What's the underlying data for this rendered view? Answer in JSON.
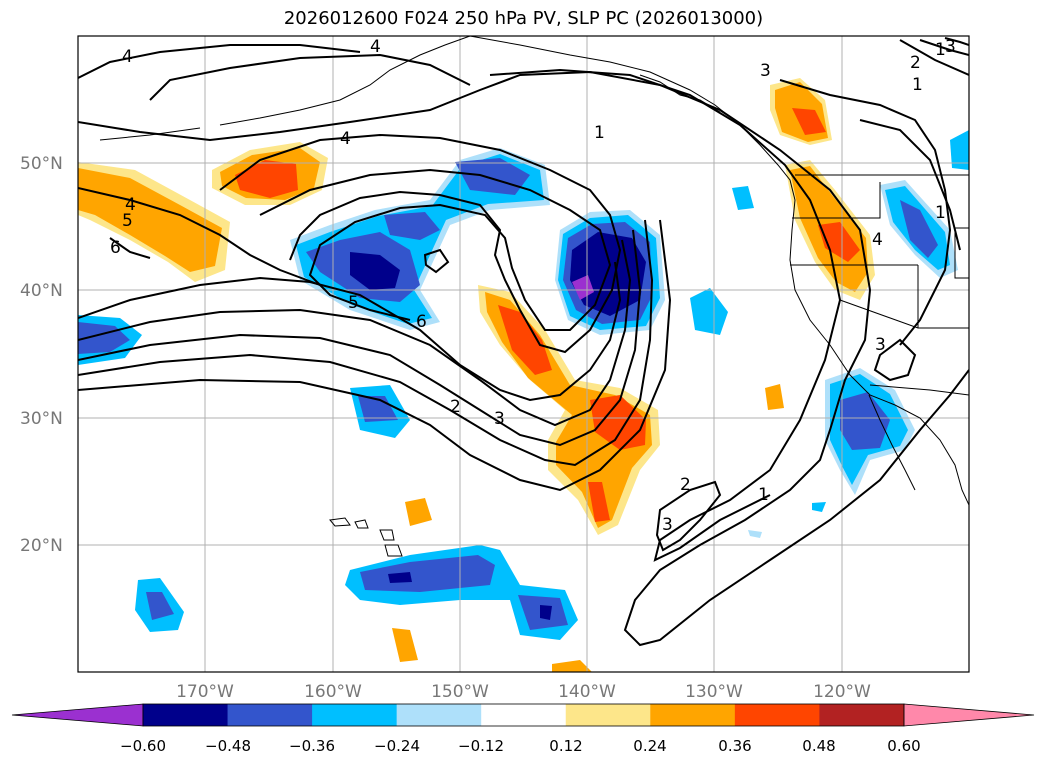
{
  "title": "2026012600 F024 250 hPa PV, SLP PC (2026013000)",
  "lat_labels": [
    "50°N",
    "40°N",
    "30°N",
    "20°N"
  ],
  "lon_labels": [
    "170°W",
    "160°W",
    "150°W",
    "140°W",
    "130°W",
    "120°W"
  ],
  "colorbar": {
    "ticks": [
      "−0.60",
      "−0.48",
      "−0.36",
      "−0.24",
      "−0.12",
      "0.12",
      "0.24",
      "0.36",
      "0.48",
      "0.60"
    ],
    "colors": [
      "#9b30d0",
      "#00008b",
      "#3355cc",
      "#00bfff",
      "#aee0fa",
      "#ffffff",
      "#fde68a",
      "#ffa500",
      "#ff4500",
      "#b22222",
      "#ff88aa"
    ]
  },
  "contour_labels": [
    "4",
    "4",
    "4",
    "1",
    "4",
    "5",
    "6",
    "5",
    "6",
    "2",
    "3",
    "2",
    "3",
    "1",
    "3",
    "2",
    "1",
    "1",
    "4",
    "1",
    "3",
    "3"
  ]
}
